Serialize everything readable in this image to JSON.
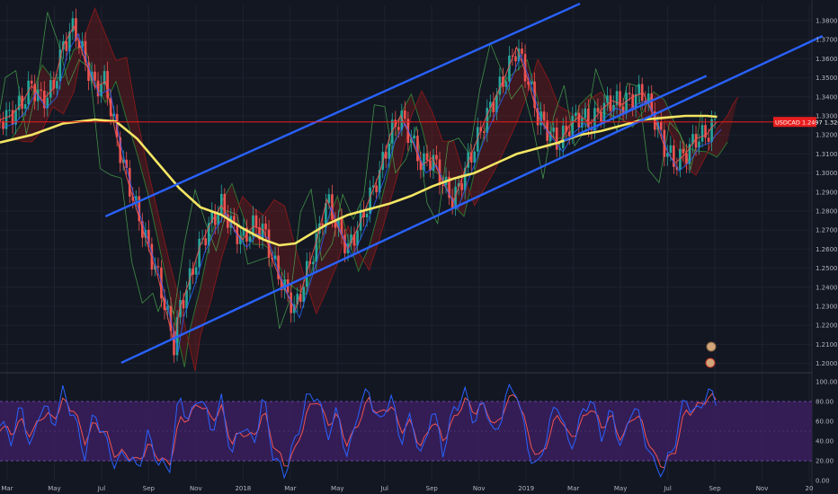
{
  "chart_data": {
    "type": "line",
    "symbol": "USDCAD",
    "price_label": "USDCAD 1.2497 1.32680",
    "price_last": 1.3268,
    "price_axis": {
      "ticks": [
        "1.38000",
        "1.37000",
        "1.36000",
        "1.35000",
        "1.34000",
        "1.33000",
        "1.32000",
        "1.31000",
        "1.30000",
        "1.29000",
        "1.28000",
        "1.27000",
        "1.26000",
        "1.25000",
        "1.24000",
        "1.23000",
        "1.22000",
        "1.21000",
        "1.20000"
      ],
      "ylim": [
        1.1965,
        1.388
      ]
    },
    "oscillator_axis": {
      "ticks": [
        "100.00",
        "80.00",
        "60.00",
        "40.00",
        "20.00",
        "0.00"
      ],
      "ylim": [
        0,
        100
      ],
      "band": [
        20,
        80
      ]
    },
    "x_ticks": [
      "Mar",
      "May",
      "Jul",
      "Sep",
      "Nov",
      "2018",
      "Mar",
      "May",
      "Jul",
      "Sep",
      "Nov",
      "2019",
      "Mar",
      "May",
      "Jul",
      "Sep",
      "Nov",
      "20"
    ],
    "x_range": [
      -3,
      151
    ],
    "price_series": [
      [
        -3,
        1.328
      ],
      [
        -1,
        1.33
      ],
      [
        1,
        1.336
      ],
      [
        3,
        1.346
      ],
      [
        5,
        1.338
      ],
      [
        7,
        1.344
      ],
      [
        9,
        1.367
      ],
      [
        11,
        1.377
      ],
      [
        13,
        1.36
      ],
      [
        15,
        1.345
      ],
      [
        17,
        1.348
      ],
      [
        19,
        1.32
      ],
      [
        21,
        1.298
      ],
      [
        23,
        1.28
      ],
      [
        25,
        1.262
      ],
      [
        27,
        1.245
      ],
      [
        29,
        1.222
      ],
      [
        30,
        1.21
      ],
      [
        31,
        1.228
      ],
      [
        33,
        1.244
      ],
      [
        35,
        1.262
      ],
      [
        37,
        1.274
      ],
      [
        39,
        1.283
      ],
      [
        41,
        1.272
      ],
      [
        43,
        1.265
      ],
      [
        45,
        1.272
      ],
      [
        47,
        1.27
      ],
      [
        49,
        1.252
      ],
      [
        51,
        1.239
      ],
      [
        53,
        1.228
      ],
      [
        55,
        1.246
      ],
      [
        57,
        1.264
      ],
      [
        59,
        1.286
      ],
      [
        61,
        1.272
      ],
      [
        63,
        1.26
      ],
      [
        65,
        1.272
      ],
      [
        67,
        1.286
      ],
      [
        69,
        1.3
      ],
      [
        71,
        1.32
      ],
      [
        73,
        1.33
      ],
      [
        75,
        1.318
      ],
      [
        77,
        1.304
      ],
      [
        79,
        1.308
      ],
      [
        81,
        1.295
      ],
      [
        83,
        1.285
      ],
      [
        85,
        1.3
      ],
      [
        87,
        1.314
      ],
      [
        89,
        1.328
      ],
      [
        91,
        1.34
      ],
      [
        93,
        1.352
      ],
      [
        95,
        1.366
      ],
      [
        97,
        1.35
      ],
      [
        99,
        1.33
      ],
      [
        101,
        1.322
      ],
      [
        103,
        1.315
      ],
      [
        105,
        1.325
      ],
      [
        107,
        1.33
      ],
      [
        109,
        1.326
      ],
      [
        111,
        1.333
      ],
      [
        113,
        1.338
      ],
      [
        115,
        1.336
      ],
      [
        117,
        1.34
      ],
      [
        119,
        1.342
      ],
      [
        121,
        1.33
      ],
      [
        123,
        1.314
      ],
      [
        125,
        1.305
      ],
      [
        127,
        1.31
      ],
      [
        129,
        1.318
      ],
      [
        131,
        1.32
      ],
      [
        132,
        1.324
      ],
      [
        133,
        1.3268
      ]
    ],
    "ma_series": [
      [
        -3,
        1.316
      ],
      [
        3,
        1.32
      ],
      [
        9,
        1.326
      ],
      [
        15,
        1.328
      ],
      [
        19,
        1.327
      ],
      [
        23,
        1.318
      ],
      [
        27,
        1.305
      ],
      [
        31,
        1.292
      ],
      [
        35,
        1.282
      ],
      [
        39,
        1.278
      ],
      [
        43,
        1.271
      ],
      [
        47,
        1.265
      ],
      [
        50,
        1.262
      ],
      [
        53,
        1.263
      ],
      [
        56,
        1.268
      ],
      [
        59,
        1.273
      ],
      [
        63,
        1.278
      ],
      [
        67,
        1.281
      ],
      [
        71,
        1.284
      ],
      [
        75,
        1.288
      ],
      [
        79,
        1.293
      ],
      [
        83,
        1.297
      ],
      [
        87,
        1.3
      ],
      [
        91,
        1.305
      ],
      [
        95,
        1.31
      ],
      [
        99,
        1.313
      ],
      [
        103,
        1.316
      ],
      [
        107,
        1.32
      ],
      [
        111,
        1.322
      ],
      [
        115,
        1.325
      ],
      [
        119,
        1.328
      ],
      [
        123,
        1.329
      ],
      [
        127,
        1.33
      ],
      [
        131,
        1.33
      ],
      [
        133,
        1.3295
      ]
    ],
    "trendlines": [
      {
        "from": [
          17,
          1.2772
        ],
        "to": [
          107,
          1.3889
        ]
      },
      {
        "from": [
          20,
          1.2003
        ],
        "to": [
          153,
          1.3719
        ]
      },
      {
        "from": [
          104,
          1.317
        ],
        "to": [
          131,
          1.351
        ]
      }
    ],
    "horizontal_level": 1.3268,
    "oscillator": {
      "k": [
        [
          -3,
          60
        ],
        [
          -1,
          40
        ],
        [
          1,
          75
        ],
        [
          3,
          30
        ],
        [
          5,
          82
        ],
        [
          7,
          55
        ],
        [
          9,
          90
        ],
        [
          11,
          65
        ],
        [
          13,
          25
        ],
        [
          15,
          70
        ],
        [
          17,
          40
        ],
        [
          19,
          15
        ],
        [
          21,
          30
        ],
        [
          23,
          10
        ],
        [
          25,
          45
        ],
        [
          27,
          20
        ],
        [
          29,
          8
        ],
        [
          31,
          85
        ],
        [
          33,
          60
        ],
        [
          35,
          90
        ],
        [
          37,
          50
        ],
        [
          39,
          80
        ],
        [
          41,
          25
        ],
        [
          43,
          60
        ],
        [
          45,
          35
        ],
        [
          47,
          85
        ],
        [
          49,
          20
        ],
        [
          51,
          8
        ],
        [
          53,
          40
        ],
        [
          55,
          80
        ],
        [
          57,
          90
        ],
        [
          59,
          45
        ],
        [
          61,
          70
        ],
        [
          63,
          20
        ],
        [
          65,
          75
        ],
        [
          67,
          90
        ],
        [
          69,
          55
        ],
        [
          71,
          88
        ],
        [
          73,
          40
        ],
        [
          75,
          65
        ],
        [
          77,
          20
        ],
        [
          79,
          75
        ],
        [
          81,
          30
        ],
        [
          83,
          70
        ],
        [
          85,
          90
        ],
        [
          87,
          60
        ],
        [
          89,
          80
        ],
        [
          91,
          40
        ],
        [
          93,
          88
        ],
        [
          95,
          92
        ],
        [
          97,
          35
        ],
        [
          99,
          10
        ],
        [
          101,
          55
        ],
        [
          103,
          80
        ],
        [
          105,
          30
        ],
        [
          107,
          60
        ],
        [
          109,
          85
        ],
        [
          111,
          45
        ],
        [
          113,
          70
        ],
        [
          115,
          30
        ],
        [
          117,
          80
        ],
        [
          119,
          50
        ],
        [
          121,
          15
        ],
        [
          123,
          10
        ],
        [
          125,
          40
        ],
        [
          127,
          85
        ],
        [
          129,
          65
        ],
        [
          131,
          90
        ],
        [
          133,
          80
        ]
      ],
      "d": [
        [
          -3,
          55
        ],
        [
          -1,
          48
        ],
        [
          1,
          60
        ],
        [
          3,
          45
        ],
        [
          5,
          68
        ],
        [
          7,
          62
        ],
        [
          9,
          80
        ],
        [
          11,
          72
        ],
        [
          13,
          40
        ],
        [
          15,
          58
        ],
        [
          17,
          48
        ],
        [
          19,
          25
        ],
        [
          21,
          28
        ],
        [
          23,
          18
        ],
        [
          25,
          35
        ],
        [
          27,
          25
        ],
        [
          29,
          14
        ],
        [
          31,
          60
        ],
        [
          33,
          65
        ],
        [
          35,
          80
        ],
        [
          37,
          62
        ],
        [
          39,
          72
        ],
        [
          41,
          38
        ],
        [
          43,
          50
        ],
        [
          45,
          42
        ],
        [
          47,
          70
        ],
        [
          49,
          35
        ],
        [
          51,
          15
        ],
        [
          53,
          30
        ],
        [
          55,
          65
        ],
        [
          57,
          85
        ],
        [
          59,
          58
        ],
        [
          61,
          65
        ],
        [
          63,
          35
        ],
        [
          65,
          60
        ],
        [
          67,
          82
        ],
        [
          69,
          65
        ],
        [
          71,
          78
        ],
        [
          73,
          52
        ],
        [
          75,
          58
        ],
        [
          77,
          32
        ],
        [
          79,
          62
        ],
        [
          81,
          42
        ],
        [
          83,
          60
        ],
        [
          85,
          82
        ],
        [
          87,
          70
        ],
        [
          89,
          76
        ],
        [
          91,
          52
        ],
        [
          93,
          78
        ],
        [
          95,
          88
        ],
        [
          97,
          50
        ],
        [
          99,
          20
        ],
        [
          101,
          42
        ],
        [
          103,
          70
        ],
        [
          105,
          42
        ],
        [
          107,
          55
        ],
        [
          109,
          75
        ],
        [
          111,
          55
        ],
        [
          113,
          64
        ],
        [
          115,
          40
        ],
        [
          117,
          68
        ],
        [
          119,
          56
        ],
        [
          121,
          25
        ],
        [
          123,
          15
        ],
        [
          125,
          30
        ],
        [
          127,
          70
        ],
        [
          129,
          72
        ],
        [
          131,
          84
        ],
        [
          133,
          82
        ]
      ]
    },
    "colors": {
      "background": "#131722",
      "candle_up": "#26a69a",
      "candle_down": "#ef5350",
      "moving_average": "#f5e663",
      "trendline": "#2962ff",
      "horizontal_level": "#e91e1e",
      "price_tag": "#e91e1e",
      "cloud_green": "#2e7d32",
      "cloud_red": "#8b1a1a",
      "oscillator_band": "#3b1f5e",
      "oscillator_k": "#2962ff",
      "oscillator_d": "#ef5350",
      "grid": "#1e2230"
    },
    "grid": true
  }
}
